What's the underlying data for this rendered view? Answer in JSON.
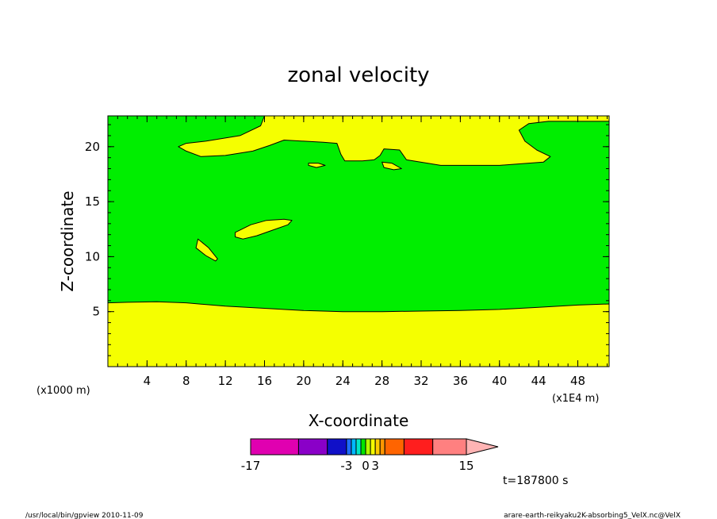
{
  "chart_data": {
    "type": "contour",
    "title": "zonal velocity",
    "xlabel": "X-coordinate",
    "ylabel": "Z-coordinate",
    "x_unit": "(x1E4 m)",
    "y_unit": "(x1000 m)",
    "xlim": [
      0,
      51.2
    ],
    "ylim": [
      0,
      22.8
    ],
    "x_ticks": [
      4,
      8,
      12,
      16,
      20,
      24,
      28,
      32,
      36,
      40,
      44,
      48
    ],
    "y_ticks": [
      5,
      10,
      15,
      20
    ],
    "colors": {
      "background_region": "#00ee00",
      "positive_region": "#f5ff00",
      "contour_line": "#000000"
    },
    "regions": [
      {
        "fill": "positive_region",
        "points": [
          [
            0,
            0
          ],
          [
            51.2,
            0
          ],
          [
            51.2,
            5.7
          ],
          [
            48,
            5.6
          ],
          [
            44,
            5.4
          ],
          [
            40,
            5.2
          ],
          [
            36,
            5.1
          ],
          [
            32,
            5.05
          ],
          [
            28,
            5.0
          ],
          [
            24,
            5.0
          ],
          [
            20,
            5.1
          ],
          [
            16,
            5.3
          ],
          [
            12,
            5.5
          ],
          [
            8,
            5.8
          ],
          [
            5,
            5.9
          ],
          [
            2,
            5.85
          ],
          [
            0,
            5.8
          ]
        ]
      },
      {
        "fill": "positive_region",
        "points": [
          [
            16,
            22.8
          ],
          [
            51.2,
            22.8
          ],
          [
            51.2,
            22.3
          ],
          [
            45,
            22.3
          ],
          [
            43,
            22.1
          ],
          [
            42,
            21.5
          ],
          [
            42.6,
            20.5
          ],
          [
            43.8,
            19.7
          ],
          [
            45.2,
            19.1
          ],
          [
            44.5,
            18.6
          ],
          [
            40,
            18.3
          ],
          [
            34,
            18.3
          ],
          [
            30.5,
            18.8
          ],
          [
            29.8,
            19.7
          ],
          [
            28.2,
            19.8
          ],
          [
            27.8,
            19.2
          ],
          [
            27.2,
            18.8
          ],
          [
            26,
            18.7
          ],
          [
            24.2,
            18.7
          ],
          [
            23.8,
            19.3
          ],
          [
            23.4,
            20.3
          ],
          [
            22,
            20.4
          ],
          [
            18,
            20.6
          ],
          [
            16.5,
            20.1
          ],
          [
            14.8,
            19.6
          ],
          [
            12,
            19.2
          ],
          [
            9.5,
            19.1
          ],
          [
            8,
            19.6
          ],
          [
            7.2,
            20.0
          ],
          [
            8,
            20.3
          ],
          [
            10,
            20.5
          ],
          [
            13.5,
            21.0
          ],
          [
            15.6,
            21.9
          ]
        ]
      },
      {
        "fill": "positive_region",
        "points": [
          [
            13,
            12.2
          ],
          [
            14.6,
            12.9
          ],
          [
            16.2,
            13.3
          ],
          [
            18,
            13.4
          ],
          [
            18.8,
            13.3
          ],
          [
            18.4,
            12.9
          ],
          [
            16.8,
            12.4
          ],
          [
            15.2,
            11.9
          ],
          [
            13.8,
            11.6
          ],
          [
            13,
            11.8
          ]
        ]
      },
      {
        "fill": "positive_region",
        "points": [
          [
            9.2,
            11.6
          ],
          [
            9.0,
            10.8
          ],
          [
            10.0,
            10.1
          ],
          [
            11.0,
            9.6
          ],
          [
            11.2,
            9.8
          ],
          [
            10.3,
            10.8
          ]
        ]
      },
      {
        "fill": "positive_region",
        "points": [
          [
            20.5,
            18.5
          ],
          [
            21.5,
            18.5
          ],
          [
            22.2,
            18.3
          ],
          [
            21.3,
            18.1
          ],
          [
            20.5,
            18.3
          ]
        ]
      },
      {
        "fill": "positive_region",
        "points": [
          [
            28.0,
            18.6
          ],
          [
            29.0,
            18.5
          ],
          [
            30.0,
            18.0
          ],
          [
            29.2,
            17.9
          ],
          [
            28.2,
            18.1
          ]
        ]
      }
    ],
    "colorbar": {
      "tick_labels": [
        "-17",
        "-3",
        "0",
        "3",
        "15"
      ],
      "segments": [
        {
          "color": "#e000b0",
          "weight": 10
        },
        {
          "color": "#8a00c8",
          "weight": 6
        },
        {
          "color": "#1010c8",
          "weight": 4
        },
        {
          "color": "#1e6cff",
          "weight": 1
        },
        {
          "color": "#00b8ff",
          "weight": 1
        },
        {
          "color": "#00e6c8",
          "weight": 1
        },
        {
          "color": "#00e600",
          "weight": 1
        },
        {
          "color": "#b4ff00",
          "weight": 1
        },
        {
          "color": "#f5ff00",
          "weight": 1
        },
        {
          "color": "#ffcc00",
          "weight": 1
        },
        {
          "color": "#ff9600",
          "weight": 1
        },
        {
          "color": "#ff6400",
          "weight": 4
        },
        {
          "color": "#ff1e1e",
          "weight": 6
        },
        {
          "color": "#ff8080",
          "weight": 7
        }
      ],
      "overflow_color": "#ffb4b4"
    },
    "time_label": "t=187800 s"
  },
  "footer": {
    "left": "/usr/local/bin/gpview   2010-11-09",
    "right": "arare-earth-reikyaku2K-absorbing5_VelX.nc@VelX"
  }
}
